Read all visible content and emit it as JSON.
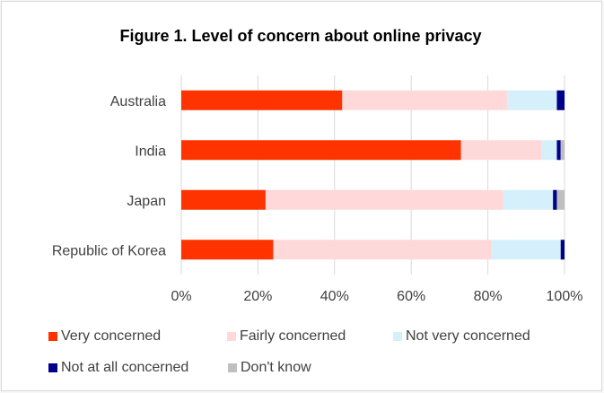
{
  "chart_data": {
    "type": "bar",
    "orientation": "horizontal",
    "stacked": true,
    "title": "Figure 1. Level of concern about online privacy",
    "categories": [
      "Australia",
      "India",
      "Japan",
      "Republic of Korea"
    ],
    "series": [
      {
        "name": "Very concerned",
        "color": "#ff3300",
        "values": [
          42,
          73,
          22,
          24
        ]
      },
      {
        "name": "Fairly concerned",
        "color": "#ffd9d9",
        "values": [
          43,
          21,
          62,
          57
        ]
      },
      {
        "name": "Not very concerned",
        "color": "#d6f0fb",
        "values": [
          13,
          4,
          13,
          18
        ]
      },
      {
        "name": "Not at all concerned",
        "color": "#00008b",
        "values": [
          2,
          1,
          1,
          1
        ]
      },
      {
        "name": "Don't know",
        "color": "#bfbfbf",
        "values": [
          0,
          1,
          2,
          0
        ]
      }
    ],
    "xlim": [
      0,
      100
    ],
    "xticks": [
      "0%",
      "20%",
      "40%",
      "60%",
      "80%",
      "100%"
    ],
    "grid": "vertical",
    "legend": "bottom"
  }
}
